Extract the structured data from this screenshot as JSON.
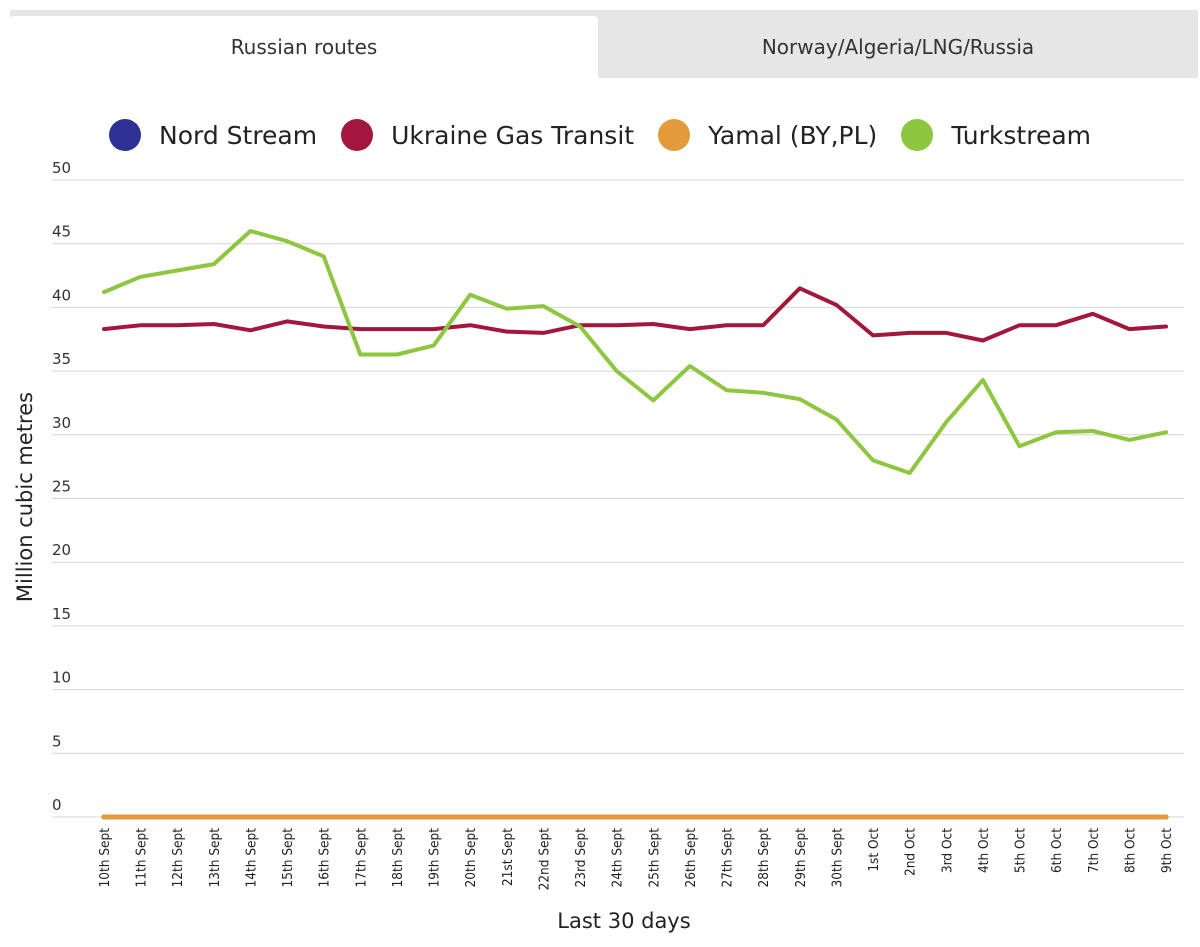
{
  "tabs": [
    {
      "label": "Russian routes",
      "active": true
    },
    {
      "label": "Norway/Algeria/LNG/Russia",
      "active": false
    }
  ],
  "chart_data": {
    "type": "line",
    "title": "",
    "xlabel": "Last 30 days",
    "ylabel": "Million cubic metres",
    "ylim": [
      0,
      50
    ],
    "yticks": [
      0,
      5,
      10,
      15,
      20,
      25,
      30,
      35,
      40,
      45,
      50
    ],
    "grid": true,
    "legend_position": "top",
    "categories": [
      "10th Sept",
      "11th Sept",
      "12th Sept",
      "13th Sept",
      "14th Sept",
      "15th Sept",
      "16th Sept",
      "17th Sept",
      "18th Sept",
      "19th Sept",
      "20th Sept",
      "21st Sept",
      "22nd Sept",
      "23rd Sept",
      "24th Sept",
      "25th Sept",
      "26th Sept",
      "27th Sept",
      "28th Sept",
      "29th Sept",
      "30th Sept",
      "1st Oct",
      "2nd Oct",
      "3rd Oct",
      "4th Oct",
      "5th Oct",
      "6th Oct",
      "7th Oct",
      "8th Oct",
      "9th Oct"
    ],
    "series": [
      {
        "name": "Nord Stream",
        "color": "#2e3192",
        "values": [
          0,
          0,
          0,
          0,
          0,
          0,
          0,
          0,
          0,
          0,
          0,
          0,
          0,
          0,
          0,
          0,
          0,
          0,
          0,
          0,
          0,
          0,
          0,
          0,
          0,
          0,
          0,
          0,
          0,
          0
        ]
      },
      {
        "name": "Ukraine Gas Transit",
        "color": "#a3173c",
        "values": [
          38.3,
          38.6,
          38.6,
          38.7,
          38.2,
          38.9,
          38.5,
          38.3,
          38.3,
          38.3,
          38.6,
          38.1,
          38.0,
          38.6,
          38.6,
          38.7,
          38.3,
          38.6,
          38.6,
          41.5,
          40.2,
          37.8,
          38.0,
          38.0,
          37.4,
          38.6,
          38.6,
          39.5,
          38.3,
          38.5
        ]
      },
      {
        "name": "Yamal (BY,PL)",
        "color": "#e29a3a",
        "values": [
          0,
          0,
          0,
          0,
          0,
          0,
          0,
          0,
          0,
          0,
          0,
          0,
          0,
          0,
          0,
          0,
          0,
          0,
          0,
          0,
          0,
          0,
          0,
          0,
          0,
          0,
          0,
          0,
          0,
          0
        ]
      },
      {
        "name": "Turkstream",
        "color": "#8dc63f",
        "values": [
          41.2,
          42.4,
          42.9,
          43.4,
          46.0,
          45.2,
          44.0,
          36.3,
          36.3,
          37.0,
          41.0,
          39.9,
          40.1,
          38.5,
          35.0,
          32.7,
          35.4,
          33.5,
          33.3,
          32.8,
          31.2,
          28.0,
          27.0,
          31.0,
          34.3,
          29.1,
          30.2,
          30.3,
          29.6,
          30.2
        ]
      }
    ]
  }
}
